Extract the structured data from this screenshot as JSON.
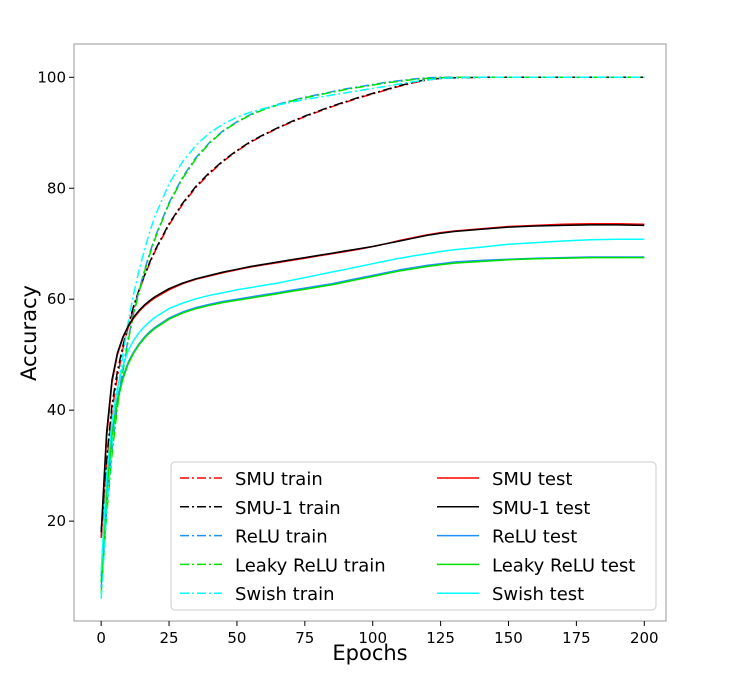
{
  "chart_data": {
    "type": "line",
    "title": "",
    "xlabel": "Epochs",
    "ylabel": "Accuracy",
    "xlim": [
      -10,
      208
    ],
    "ylim": [
      2,
      106
    ],
    "xticks": [
      0,
      25,
      50,
      75,
      100,
      125,
      150,
      175,
      200
    ],
    "yticks": [
      20,
      40,
      60,
      80,
      100
    ],
    "grid": false,
    "legend_placement": "lower-right",
    "legend_columns": 2,
    "x": [
      0,
      2,
      4,
      6,
      8,
      10,
      12,
      14,
      16,
      18,
      20,
      25,
      30,
      35,
      40,
      45,
      50,
      55,
      60,
      65,
      70,
      75,
      80,
      85,
      90,
      95,
      100,
      105,
      110,
      115,
      120,
      125,
      130,
      140,
      150,
      160,
      170,
      180,
      190,
      200
    ],
    "series": [
      {
        "name": "SMU train",
        "style": "dashdot",
        "color": "#ff0000",
        "values": [
          17,
          30,
          40,
          46,
          51,
          55,
          58.5,
          61.5,
          64.2,
          66.6,
          68.8,
          73.4,
          77.1,
          80.2,
          82.7,
          84.9,
          86.7,
          88.3,
          89.6,
          90.8,
          91.9,
          92.9,
          93.8,
          94.7,
          95.5,
          96.3,
          97,
          97.7,
          98.4,
          99,
          99.5,
          99.8,
          99.9,
          100,
          100,
          100,
          100,
          100,
          100,
          100
        ]
      },
      {
        "name": "SMU-1 train",
        "style": "dashdot",
        "color": "#000000",
        "values": [
          18,
          31,
          41,
          47,
          51.6,
          55.4,
          58.8,
          61.8,
          64.4,
          66.8,
          69,
          73.6,
          77.3,
          80.4,
          82.9,
          85,
          86.8,
          88.4,
          89.7,
          90.9,
          92,
          93,
          93.9,
          94.8,
          95.6,
          96.4,
          97.1,
          97.8,
          98.5,
          99.1,
          99.6,
          99.8,
          99.9,
          100,
          100,
          100,
          100,
          100,
          100,
          100
        ]
      },
      {
        "name": "ReLU train",
        "style": "dashdot",
        "color": "#1e90ff",
        "values": [
          8,
          22,
          33,
          41,
          47.5,
          53,
          57.6,
          61.7,
          65.3,
          68.5,
          71.4,
          77.4,
          82,
          85.6,
          88.3,
          90.4,
          92,
          93.3,
          94.3,
          95.1,
          95.8,
          96.4,
          96.9,
          97.4,
          97.9,
          98.3,
          98.7,
          99.1,
          99.4,
          99.7,
          99.9,
          100,
          100,
          100,
          100,
          100,
          100,
          100,
          100,
          100
        ]
      },
      {
        "name": "Leaky ReLU train",
        "style": "dashdot",
        "color": "#00e000",
        "values": [
          7,
          21,
          32,
          40.5,
          47,
          52.6,
          57.3,
          61.4,
          65,
          68.2,
          71.1,
          77.2,
          81.8,
          85.4,
          88.2,
          90.3,
          91.9,
          93.2,
          94.2,
          95,
          95.7,
          96.3,
          96.8,
          97.3,
          97.8,
          98.2,
          98.6,
          99,
          99.3,
          99.6,
          99.8,
          99.9,
          100,
          100,
          100,
          100,
          100,
          100,
          100,
          100
        ]
      },
      {
        "name": "Swish train",
        "style": "dashdot",
        "color": "#00ffff",
        "values": [
          6,
          22,
          34,
          43,
          50,
          56,
          61,
          65.3,
          69,
          72.3,
          75.2,
          80.8,
          84.8,
          87.8,
          90,
          91.6,
          92.8,
          93.7,
          94.4,
          95,
          95.5,
          96,
          96.4,
          96.8,
          97.2,
          97.6,
          98,
          98.4,
          98.8,
          99.2,
          99.5,
          99.8,
          99.9,
          100,
          100,
          100,
          100,
          100,
          100,
          100
        ]
      },
      {
        "name": "SMU test",
        "style": "solid",
        "color": "#ff0000",
        "values": [
          17,
          35,
          45,
          50,
          53,
          55,
          56.6,
          57.8,
          58.8,
          59.6,
          60.3,
          61.7,
          62.8,
          63.6,
          64.2,
          64.8,
          65.3,
          65.8,
          66.2,
          66.6,
          67,
          67.4,
          67.8,
          68.2,
          68.6,
          69,
          69.5,
          70,
          70.6,
          71.1,
          71.6,
          72,
          72.3,
          72.7,
          73.1,
          73.3,
          73.5,
          73.6,
          73.6,
          73.5
        ]
      },
      {
        "name": "SMU-1 test",
        "style": "solid",
        "color": "#000000",
        "values": [
          18,
          36,
          45.5,
          50.3,
          53.2,
          55.2,
          56.8,
          58,
          59,
          59.8,
          60.5,
          61.9,
          62.9,
          63.7,
          64.3,
          64.9,
          65.4,
          65.9,
          66.3,
          66.7,
          67.1,
          67.5,
          67.9,
          68.3,
          68.7,
          69.1,
          69.5,
          70,
          70.5,
          71,
          71.5,
          71.9,
          72.2,
          72.6,
          73,
          73.2,
          73.3,
          73.4,
          73.4,
          73.3
        ]
      },
      {
        "name": "ReLU test",
        "style": "solid",
        "color": "#1e90ff",
        "values": [
          10,
          26,
          36,
          42,
          46,
          48.7,
          50.5,
          52,
          53.2,
          54.2,
          55,
          56.6,
          57.7,
          58.5,
          59.1,
          59.6,
          60,
          60.4,
          60.8,
          61.2,
          61.6,
          62,
          62.4,
          62.8,
          63.3,
          63.8,
          64.3,
          64.8,
          65.3,
          65.7,
          66.1,
          66.4,
          66.7,
          67,
          67.2,
          67.4,
          67.5,
          67.6,
          67.6,
          67.6
        ]
      },
      {
        "name": "Leaky ReLU test",
        "style": "solid",
        "color": "#00e000",
        "values": [
          9,
          25,
          35.5,
          41.6,
          45.6,
          48.4,
          50.3,
          51.8,
          53,
          54,
          54.8,
          56.4,
          57.5,
          58.3,
          58.9,
          59.4,
          59.8,
          60.2,
          60.6,
          61,
          61.4,
          61.8,
          62.2,
          62.6,
          63.1,
          63.6,
          64.1,
          64.6,
          65.1,
          65.5,
          65.9,
          66.2,
          66.5,
          66.8,
          67.1,
          67.3,
          67.4,
          67.5,
          67.5,
          67.5
        ]
      },
      {
        "name": "Swish test",
        "style": "solid",
        "color": "#00ffff",
        "values": [
          11,
          28,
          38,
          44,
          48,
          50.8,
          52.6,
          54,
          55.1,
          56,
          56.8,
          58.3,
          59.3,
          60.1,
          60.7,
          61.2,
          61.7,
          62.1,
          62.5,
          62.9,
          63.4,
          63.9,
          64.4,
          64.9,
          65.4,
          65.9,
          66.4,
          66.9,
          67.4,
          67.8,
          68.2,
          68.6,
          68.9,
          69.4,
          69.9,
          70.2,
          70.5,
          70.7,
          70.8,
          70.8
        ]
      }
    ]
  }
}
